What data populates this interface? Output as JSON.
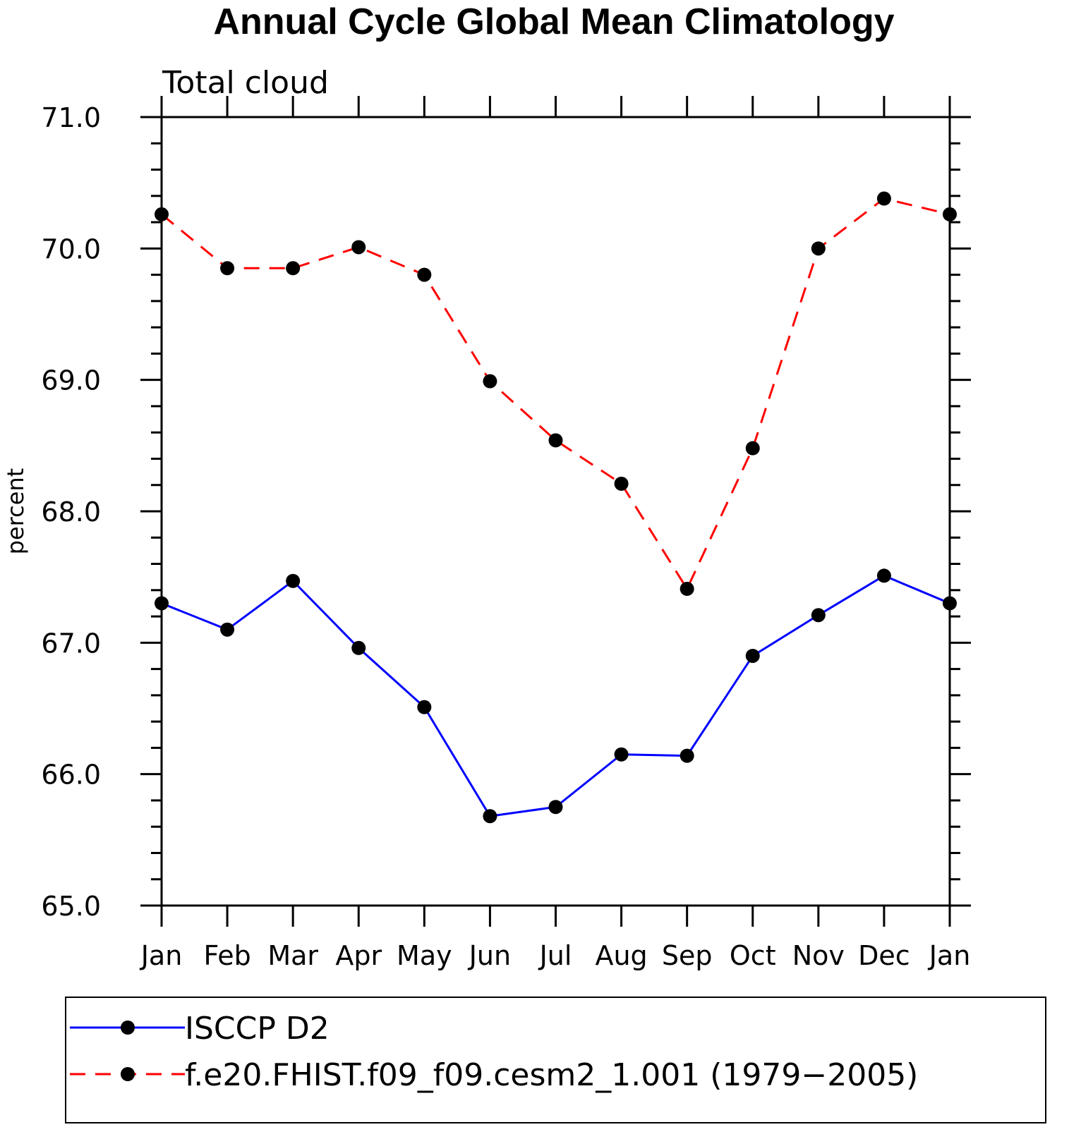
{
  "chart_data": {
    "type": "line",
    "title": "Annual Cycle Global Mean Climatology",
    "subtitle": "Total cloud",
    "xlabel": "",
    "ylabel": "percent",
    "categories": [
      "Jan",
      "Feb",
      "Mar",
      "Apr",
      "May",
      "Jun",
      "Jul",
      "Aug",
      "Sep",
      "Oct",
      "Nov",
      "Dec",
      "Jan"
    ],
    "ylim": [
      65.0,
      71.0
    ],
    "yticks": [
      "65.0",
      "66.0",
      "67.0",
      "68.0",
      "69.0",
      "70.0",
      "71.0"
    ],
    "series": [
      {
        "name": "ISCCP D2",
        "color": "#0000ff",
        "dash": "solid",
        "marker": "filled-circle",
        "values": [
          67.3,
          67.1,
          67.47,
          66.96,
          66.51,
          65.68,
          65.75,
          66.15,
          66.14,
          66.9,
          67.21,
          67.51,
          67.3
        ]
      },
      {
        "name": "f.e20.FHIST.f09_f09.cesm2_1.001 (1979−2005)",
        "color": "#ff0000",
        "dash": "dashed",
        "marker": "filled-circle",
        "values": [
          70.26,
          69.85,
          69.85,
          70.01,
          69.8,
          68.99,
          68.54,
          68.21,
          67.41,
          68.48,
          70.0,
          70.38,
          70.26
        ]
      }
    ],
    "grid": false,
    "legend_position": "bottom"
  }
}
